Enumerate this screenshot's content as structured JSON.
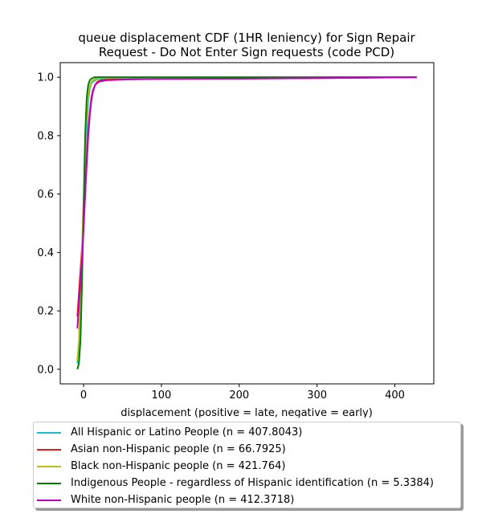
{
  "chart_data": {
    "type": "line",
    "title_line1": "queue displacement CDF (1HR leniency) for Sign Repair",
    "title_line2": "Request - Do Not Enter Sign  requests (code PCD)",
    "xlabel": "displacement (positive = late, negative = early)",
    "ylabel": "",
    "xlim": [
      -30,
      450
    ],
    "ylim": [
      -0.05,
      1.05
    ],
    "xticks": [
      0,
      100,
      200,
      300,
      400
    ],
    "yticks": [
      0.0,
      0.2,
      0.4,
      0.6,
      0.8,
      1.0
    ],
    "series": [
      {
        "name": "All Hispanic or Latino People (n = 407.8043)",
        "color": "#17becf",
        "x": [
          -8,
          -6,
          -4,
          -2,
          0,
          2,
          4,
          6,
          8,
          10,
          15,
          20,
          30,
          60,
          428
        ],
        "y": [
          0.02,
          0.08,
          0.22,
          0.38,
          0.52,
          0.68,
          0.82,
          0.92,
          0.96,
          0.98,
          0.99,
          0.995,
          0.997,
          0.998,
          1.0
        ]
      },
      {
        "name": "Asian non-Hispanic people (n = 66.7925)",
        "color": "#e41a1c",
        "x": [
          -8,
          -6,
          -4,
          -2,
          0,
          2,
          4,
          6,
          8,
          10,
          12,
          15,
          18,
          22,
          30,
          60,
          100,
          300,
          428
        ],
        "y": [
          0.18,
          0.26,
          0.34,
          0.42,
          0.5,
          0.6,
          0.7,
          0.8,
          0.87,
          0.92,
          0.95,
          0.975,
          0.985,
          0.99,
          0.992,
          0.993,
          0.995,
          0.997,
          1.0
        ]
      },
      {
        "name": "Black non-Hispanic people (n = 421.764)",
        "color": "#bcbd22",
        "x": [
          -8,
          -6,
          -4,
          -2,
          0,
          2,
          4,
          6,
          8,
          10,
          15,
          20,
          30,
          428
        ],
        "y": [
          0.03,
          0.1,
          0.25,
          0.42,
          0.58,
          0.75,
          0.88,
          0.94,
          0.97,
          0.985,
          0.995,
          0.997,
          0.998,
          1.0
        ]
      },
      {
        "name": "Indigenous People - regardless of Hispanic identification (n = 5.3384)",
        "color": "#008000",
        "x": [
          -8,
          -6,
          -4,
          -2,
          0,
          2,
          4,
          6,
          8,
          10,
          14,
          20,
          428
        ],
        "y": [
          0.0,
          0.02,
          0.1,
          0.3,
          0.55,
          0.8,
          0.93,
          0.975,
          0.99,
          0.995,
          1.0,
          1.0,
          1.0
        ]
      },
      {
        "name": "White non-Hispanic people (n = 412.3718)",
        "color": "#c000c0",
        "x": [
          -8,
          -6,
          -4,
          -2,
          0,
          2,
          4,
          6,
          8,
          10,
          12,
          15,
          20,
          30,
          60,
          100,
          200,
          300,
          428
        ],
        "y": [
          0.14,
          0.22,
          0.3,
          0.38,
          0.48,
          0.6,
          0.72,
          0.82,
          0.88,
          0.93,
          0.955,
          0.975,
          0.985,
          0.99,
          0.993,
          0.994,
          0.995,
          0.997,
          1.0
        ]
      }
    ],
    "grid": false,
    "legend_position": "below"
  }
}
